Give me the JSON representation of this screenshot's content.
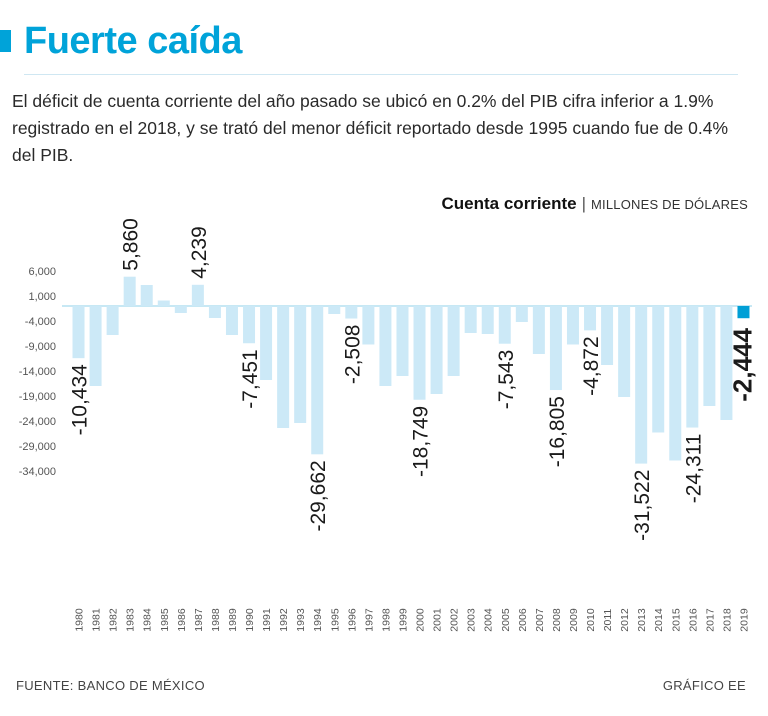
{
  "header": {
    "title": "Fuerte caída",
    "subtitle": "El déficit de cuenta corriente del año pasado se ubicó en 0.2% del PIB cifra inferior a 1.9% registrado en el 2018, y se trató del menor déficit reportado desde 1995 cuando fue de 0.4% del PIB."
  },
  "chart_data": {
    "type": "bar",
    "title": "Cuenta corriente",
    "units": "MILLONES DE DÓLARES",
    "ylabel": "Millones de dólares",
    "xlabel": "",
    "ylim": [
      -34000,
      6000
    ],
    "yticks": [
      6000,
      1000,
      -4000,
      -9000,
      -14000,
      -19000,
      -24000,
      -29000,
      -34000
    ],
    "ytick_labels": [
      "6,000",
      "1,000",
      "-4,000",
      "-9,000",
      "-14,000",
      "-19,000",
      "-24,000",
      "-29,000",
      "-34,000"
    ],
    "categories": [
      "1980",
      "1981",
      "1982",
      "1983",
      "1984",
      "1985",
      "1986",
      "1987",
      "1988",
      "1989",
      "1990",
      "1991",
      "1992",
      "1993",
      "1994",
      "1995",
      "1996",
      "1997",
      "1998",
      "1999",
      "2000",
      "2001",
      "2002",
      "2003",
      "2004",
      "2005",
      "2006",
      "2007",
      "2008",
      "2009",
      "2010",
      "2011",
      "2012",
      "2013",
      "2014",
      "2015",
      "2016",
      "2017",
      "2018",
      "2019"
    ],
    "values": [
      -10434,
      -16000,
      -5800,
      5860,
      4200,
      1100,
      -1400,
      4239,
      -2400,
      -5800,
      -7451,
      -14800,
      -24400,
      -23400,
      -29662,
      -1600,
      -2508,
      -7700,
      -16000,
      -14000,
      -18749,
      -17600,
      -14000,
      -5400,
      -5600,
      -7543,
      -3200,
      -9600,
      -16805,
      -7700,
      -4872,
      -11800,
      -18200,
      -31522,
      -25300,
      -30900,
      -24311,
      -20000,
      -22800,
      -2444
    ],
    "bar_color": "#cce9f7",
    "highlight_color": "#009fd6",
    "highlight_index": 39,
    "annotations": [
      {
        "index": 0,
        "label": "-10,434"
      },
      {
        "index": 3,
        "label": "5,860"
      },
      {
        "index": 7,
        "label": "4,239"
      },
      {
        "index": 10,
        "label": "-7,451"
      },
      {
        "index": 14,
        "label": "-29,662"
      },
      {
        "index": 16,
        "label": "-2,508"
      },
      {
        "index": 20,
        "label": "-18,749"
      },
      {
        "index": 25,
        "label": "-7,543"
      },
      {
        "index": 28,
        "label": "-16,805"
      },
      {
        "index": 30,
        "label": "-4,872"
      },
      {
        "index": 33,
        "label": "-31,522"
      },
      {
        "index": 36,
        "label": "-24,311"
      },
      {
        "index": 39,
        "label": "-2,444",
        "bold": true
      }
    ]
  },
  "footer": {
    "source": "FUENTE: BANCO DE MÉXICO",
    "credit": "GRÁFICO EE"
  }
}
